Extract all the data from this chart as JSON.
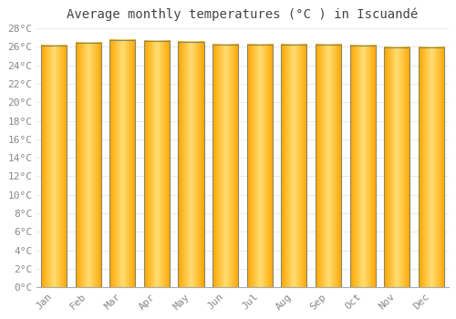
{
  "title": "Average monthly temperatures (°C ) in Iscuandé",
  "months": [
    "Jan",
    "Feb",
    "Mar",
    "Apr",
    "May",
    "Jun",
    "Jul",
    "Aug",
    "Sep",
    "Oct",
    "Nov",
    "Dec"
  ],
  "values": [
    26.1,
    26.4,
    26.7,
    26.6,
    26.5,
    26.2,
    26.2,
    26.2,
    26.2,
    26.1,
    25.9,
    25.9
  ],
  "ylim": [
    0,
    28
  ],
  "yticks": [
    0,
    2,
    4,
    6,
    8,
    10,
    12,
    14,
    16,
    18,
    20,
    22,
    24,
    26,
    28
  ],
  "background_color": "#ffffff",
  "grid_color": "#e8e8f0",
  "title_fontsize": 10,
  "tick_fontsize": 8,
  "tick_color": "#888888",
  "bar_color_center": "#FFD966",
  "bar_color_edge": "#FFA500",
  "bar_outline_color": "#888866",
  "bar_width": 0.75,
  "figsize": [
    5.0,
    3.5
  ],
  "dpi": 100
}
